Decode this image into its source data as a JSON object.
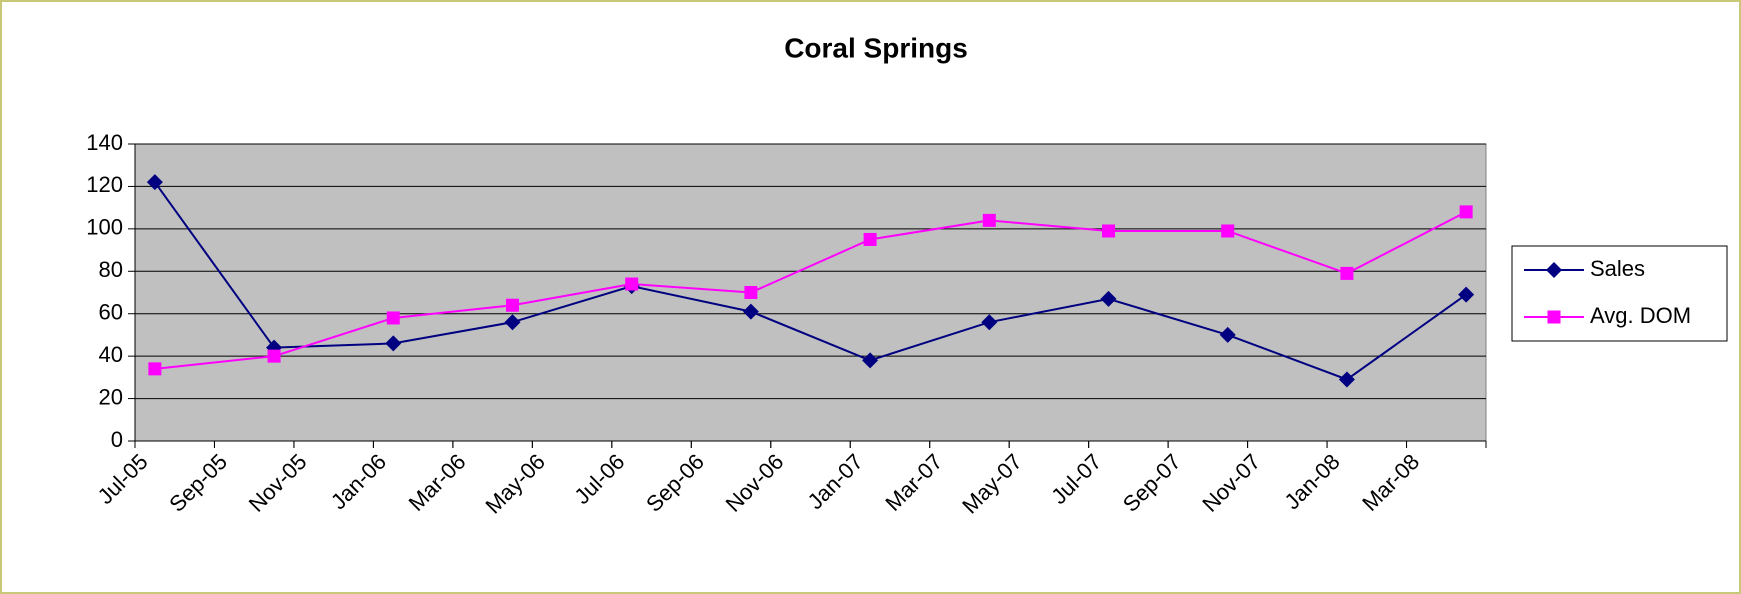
{
  "chart_data": {
    "type": "line",
    "title": "Coral Springs",
    "x": [
      "Jul-05",
      "Oct-05",
      "Jan-06",
      "Apr-06",
      "Jul-06",
      "Oct-06",
      "Jan-07",
      "Apr-07",
      "Jul-07",
      "Oct-07",
      "Jan-08",
      "Apr-08"
    ],
    "series": [
      {
        "name": "Sales",
        "color": "#000080",
        "marker": "diamond",
        "values": [
          122,
          44,
          46,
          56,
          73,
          61,
          38,
          56,
          67,
          50,
          29,
          69
        ]
      },
      {
        "name": "Avg. DOM",
        "color": "#ff00ff",
        "marker": "square",
        "values": [
          34,
          40,
          58,
          64,
          74,
          70,
          95,
          104,
          99,
          99,
          79,
          108
        ]
      }
    ],
    "xlim": [
      "Jul-05",
      "May-08"
    ],
    "xticks": [
      "Jul-05",
      "Sep-05",
      "Nov-05",
      "Jan-06",
      "Mar-06",
      "May-06",
      "Jul-06",
      "Sep-06",
      "Nov-06",
      "Jan-07",
      "Mar-07",
      "May-07",
      "Jul-07",
      "Sep-07",
      "Nov-07",
      "Jan-08",
      "Mar-08"
    ],
    "ylim": [
      0,
      140
    ],
    "yticks": [
      0,
      20,
      40,
      60,
      80,
      100,
      120,
      140
    ],
    "grid": true,
    "legend": "right",
    "plot_background": "#c0c0c0"
  }
}
